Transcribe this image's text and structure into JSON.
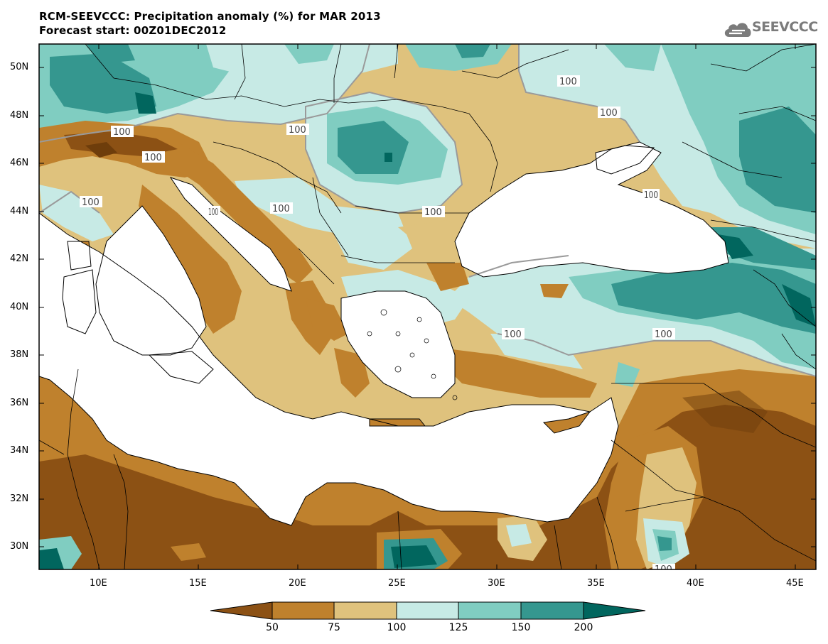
{
  "title_line1": "RCM-SEEVCCC: Precipitation anomaly (%) for MAR 2013",
  "title_line2": "Forecast start: 00Z01DEC2012",
  "logo_text": "SEEVCCC",
  "logo_icon": "cloud-icon",
  "map": {
    "lon_range": [
      7,
      46
    ],
    "lat_range": [
      29,
      51
    ],
    "lat_ticks": [
      "50N",
      "48N",
      "46N",
      "44N",
      "42N",
      "40N",
      "38N",
      "36N",
      "34N",
      "32N",
      "30N"
    ],
    "lon_ticks": [
      "10E",
      "15E",
      "20E",
      "25E",
      "30E",
      "35E",
      "40E",
      "45E"
    ],
    "contour_labels": [
      "100",
      "100",
      "100",
      "100",
      "100",
      "100",
      "100",
      "100",
      "100",
      "100",
      "100",
      "100",
      "100"
    ],
    "colors": {
      "below_50": "#8c5114",
      "50_75": "#bf812d",
      "75_100": "#dfc27d",
      "100_125": "#c7eae5",
      "125_150": "#80cdc1",
      "150_200": "#35978f",
      "above_200": "#01665e",
      "sea": "#ffffff"
    }
  },
  "colorbar": {
    "labels": [
      "50",
      "75",
      "100",
      "125",
      "150",
      "200"
    ]
  }
}
